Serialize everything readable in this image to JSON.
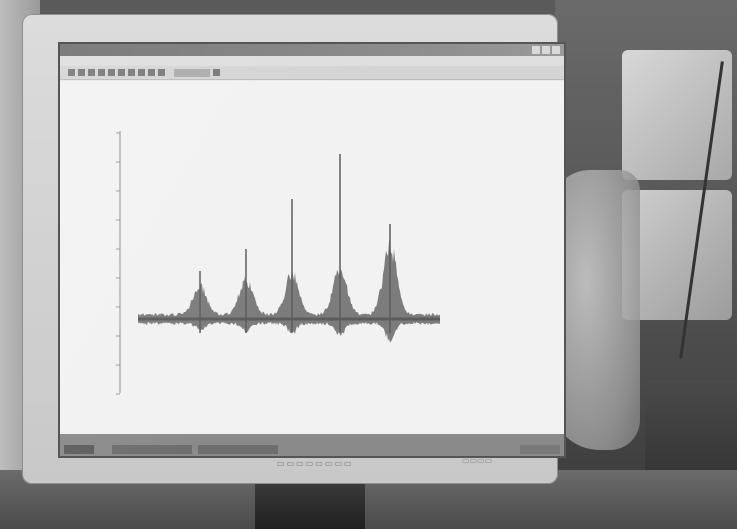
{
  "scene": {
    "description_free": true
  },
  "colors": {
    "signal": "#7c7c7c",
    "signal_dark": "#5c5c5c",
    "screen_bg": "#f2f2f2",
    "bezel": "#d0d0d0"
  },
  "icons": {
    "window_controls": [
      "minimize-icon",
      "maximize-icon",
      "close-icon"
    ]
  }
}
